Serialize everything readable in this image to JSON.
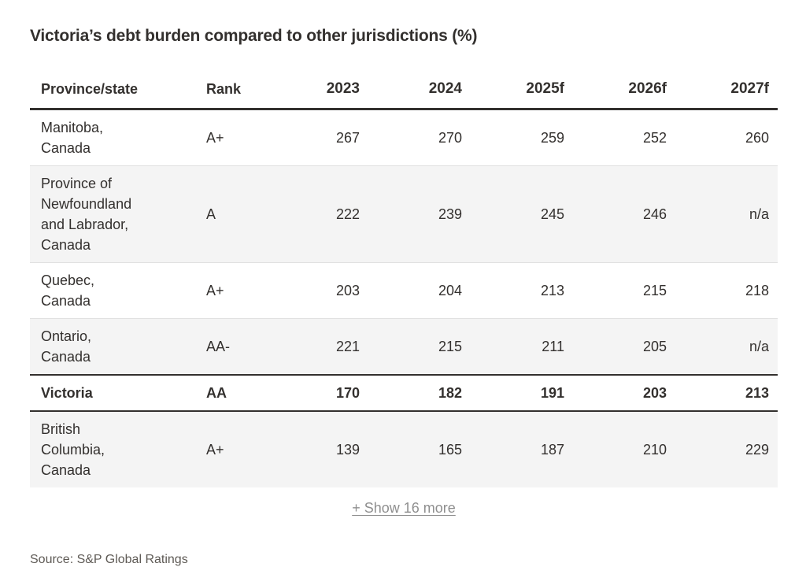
{
  "chart_data": {
    "type": "table",
    "title": "Victoria’s debt burden compared to other jurisdictions (%)",
    "columns": [
      "Province/state",
      "Rank",
      "2023",
      "2024",
      "2025f",
      "2026f",
      "2027f"
    ],
    "rows": [
      {
        "province": "Manitoba, Canada",
        "rank": "A+",
        "values": [
          "267",
          "270",
          "259",
          "252",
          "260"
        ],
        "highlight": false
      },
      {
        "province": "Province of Newfoundland and Labrador, Canada",
        "rank": "A",
        "values": [
          "222",
          "239",
          "245",
          "246",
          "n/a"
        ],
        "highlight": false
      },
      {
        "province": "Quebec, Canada",
        "rank": "A+",
        "values": [
          "203",
          "204",
          "213",
          "215",
          "218"
        ],
        "highlight": false
      },
      {
        "province": "Ontario, Canada",
        "rank": "AA-",
        "values": [
          "221",
          "215",
          "211",
          "205",
          "n/a"
        ],
        "highlight": false
      },
      {
        "province": "Victoria",
        "rank": "AA",
        "values": [
          "170",
          "182",
          "191",
          "203",
          "213"
        ],
        "highlight": true
      },
      {
        "province": "British Columbia, Canada",
        "rank": "A+",
        "values": [
          "139",
          "165",
          "187",
          "210",
          "229"
        ],
        "highlight": false
      }
    ],
    "show_more": "+ Show 16 more",
    "source": "Source: S&P Global Ratings"
  },
  "colors": {
    "text": "#33302e",
    "stripe_background": "#f4f4f4",
    "row_divider": "#e0e0e0",
    "strong_border": "#33302e",
    "show_more_gray": "#8f8f8f",
    "source_gray": "#5e5a55",
    "page_background": "#ffffff"
  }
}
